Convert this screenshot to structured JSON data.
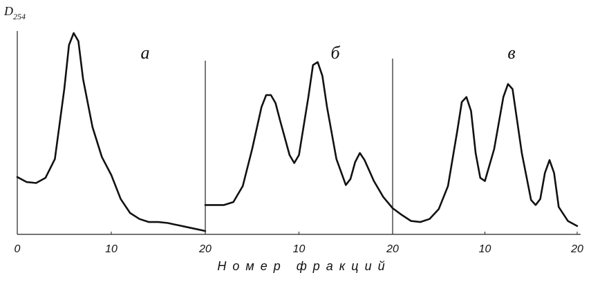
{
  "figure": {
    "y_label": {
      "symbol": "D",
      "subscript": "254"
    },
    "x_label": "Номер фракций"
  },
  "chart_data": [
    {
      "type": "line",
      "title": "а",
      "xlim": [
        0,
        20
      ],
      "xticks": [
        0,
        10,
        20
      ],
      "ylim": [
        0,
        100
      ],
      "color": "#111",
      "x": [
        0,
        1,
        2,
        3,
        4,
        5,
        5.5,
        6,
        6.5,
        7,
        8,
        9,
        10,
        11,
        12,
        13,
        14,
        15,
        16,
        17,
        18,
        19,
        20
      ],
      "values": [
        28,
        25.5,
        25,
        27.6,
        37,
        72,
        94,
        100,
        96,
        77,
        53,
        38,
        29,
        17,
        10,
        7,
        5.5,
        5.5,
        5,
        4,
        3,
        2,
        1
      ]
    },
    {
      "type": "line",
      "title": "б",
      "xlim": [
        0,
        20
      ],
      "xticks": [
        10,
        20
      ],
      "ylim": [
        0,
        100
      ],
      "color": "#111",
      "x": [
        0,
        1,
        2,
        3,
        4,
        5,
        6,
        6.5,
        7,
        7.5,
        8,
        9,
        9.5,
        10,
        11,
        11.5,
        12,
        12.5,
        13,
        14,
        15,
        15.5,
        16,
        16.5,
        17,
        18,
        19,
        20
      ],
      "values": [
        14,
        14,
        14,
        15.5,
        23.5,
        42,
        63,
        69,
        69,
        65,
        56,
        39,
        35,
        39,
        68,
        84,
        85.5,
        78.6,
        63,
        37,
        24,
        27,
        35.5,
        40,
        36.5,
        26,
        18,
        12.4
      ]
    },
    {
      "type": "line",
      "title": "в",
      "xlim": [
        0,
        20
      ],
      "xticks": [
        10,
        20
      ],
      "ylim": [
        0,
        100
      ],
      "color": "#111",
      "x": [
        0,
        1,
        2,
        3,
        4,
        5,
        6,
        7,
        7.5,
        8,
        8.5,
        9,
        9.5,
        10,
        11,
        12,
        12.5,
        13,
        14,
        15,
        15.5,
        16,
        16.5,
        17,
        17.5,
        18,
        19,
        20
      ],
      "values": [
        12.4,
        9,
        6,
        5.5,
        7,
        12,
        23.5,
        51,
        65.5,
        68,
        61,
        40,
        27.6,
        26,
        42,
        68,
        74.5,
        72,
        40,
        16.5,
        14,
        17,
        30,
        36.5,
        30,
        13,
        6,
        3.5
      ]
    }
  ]
}
